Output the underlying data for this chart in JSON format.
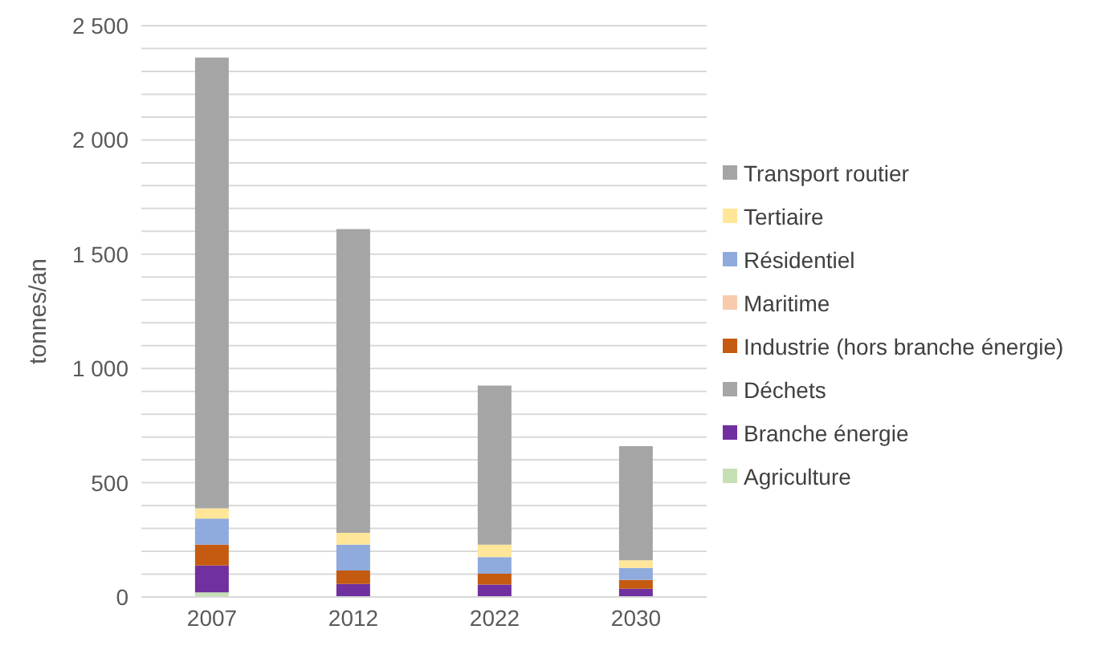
{
  "chart_data": {
    "type": "bar",
    "stacked": true,
    "ylabel": "tonnes/an",
    "categories": [
      "2007",
      "2012",
      "2022",
      "2030"
    ],
    "ylim": [
      0,
      2500
    ],
    "yticks": [
      0,
      {
        "value": 100,
        "label": null
      },
      {
        "value": 200,
        "label": null
      },
      {
        "value": 300,
        "label": null
      },
      {
        "value": 400,
        "label": null
      },
      500,
      {
        "value": 600,
        "label": null
      },
      {
        "value": 700,
        "label": null
      },
      {
        "value": 800,
        "label": null
      },
      {
        "value": 900,
        "label": null
      },
      {
        "value": 1000,
        "label": "1 000"
      },
      {
        "value": 1100,
        "label": null
      },
      {
        "value": 1200,
        "label": null
      },
      {
        "value": 1300,
        "label": null
      },
      {
        "value": 1400,
        "label": null
      },
      {
        "value": 1500,
        "label": "1 500"
      },
      {
        "value": 1600,
        "label": null
      },
      {
        "value": 1700,
        "label": null
      },
      {
        "value": 1800,
        "label": null
      },
      {
        "value": 1900,
        "label": null
      },
      {
        "value": 2000,
        "label": "2 000"
      },
      {
        "value": 2100,
        "label": null
      },
      {
        "value": 2200,
        "label": null
      },
      {
        "value": 2300,
        "label": null
      },
      {
        "value": 2400,
        "label": null
      },
      {
        "value": 2500,
        "label": "2 500"
      }
    ],
    "grid": "y",
    "legend": "right",
    "series": [
      {
        "name": "Agriculture",
        "color": "#c5e0b4",
        "values": [
          20,
          null,
          null,
          null
        ]
      },
      {
        "name": "Branche énergie",
        "color": "#7030a0",
        "values": [
          118,
          57,
          54,
          36
        ]
      },
      {
        "name": "Déchets",
        "color": "#a6a6a6",
        "values": [
          0,
          0,
          0,
          0
        ]
      },
      {
        "name": "Industrie (hors branche énergie)",
        "color": "#c55a11",
        "values": [
          91,
          59,
          48,
          39
        ]
      },
      {
        "name": "Maritime",
        "color": "#f8cbad",
        "values": [
          0,
          0,
          0,
          0
        ]
      },
      {
        "name": "Résidentiel",
        "color": "#8faadc",
        "values": [
          114,
          113,
          73,
          52
        ]
      },
      {
        "name": "Tertiaire",
        "color": "#ffe699",
        "values": [
          45,
          52,
          54,
          34
        ]
      },
      {
        "name": "Transport routier",
        "color": "#a5a5a5",
        "values": [
          1972,
          1329,
          696,
          499
        ]
      }
    ]
  }
}
